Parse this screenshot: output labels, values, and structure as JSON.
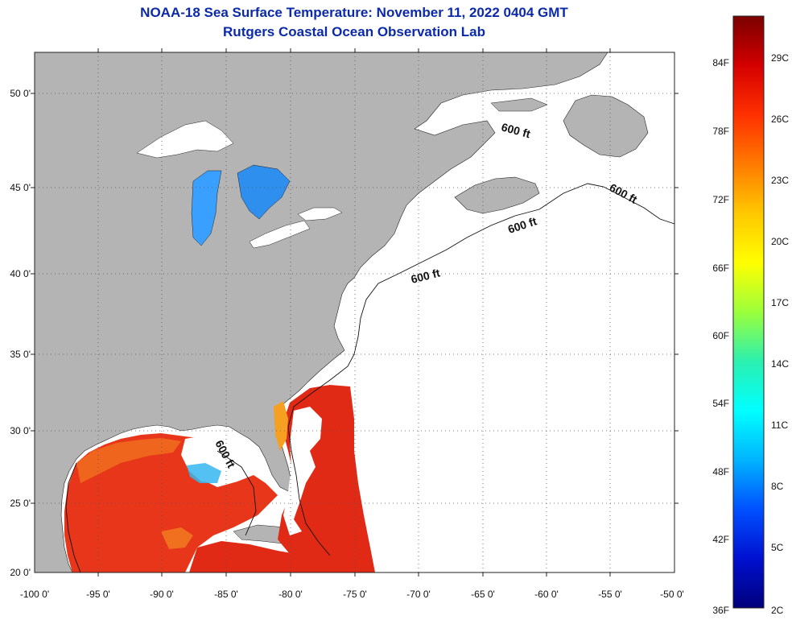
{
  "header": {
    "title": "NOAA-18 Sea Surface Temperature:  November 11, 2022 0404 GMT",
    "subtitle": "Rutgers Coastal Ocean Observation Lab"
  },
  "map": {
    "lon_ticks": [
      "-100 0'",
      "-95 0'",
      "-90 0'",
      "-85 0'",
      "-80 0'",
      "-75 0'",
      "-70 0'",
      "-65 0'",
      "-60 0'",
      "-55 0'",
      "-50 0'"
    ],
    "lat_ticks": [
      "50 0'",
      "45 0'",
      "40 0'",
      "35 0'",
      "30 0'",
      "25 0'",
      "20 0'"
    ],
    "contour_labels": [
      "600 ft",
      "600 ft",
      "600 ft",
      "600 ft",
      "600 ft"
    ],
    "land_color": "#b4b4b4",
    "ocean_nodata_color": "#ffffff"
  },
  "colorbar": {
    "fahrenheit_labels": [
      "84F",
      "78F",
      "72F",
      "66F",
      "60F",
      "54F",
      "48F",
      "42F",
      "36F"
    ],
    "celsius_labels": [
      "29C",
      "26C",
      "23C",
      "20C",
      "17C",
      "14C",
      "11C",
      "8C",
      "5C",
      "2C"
    ],
    "colors": [
      "#7a0000",
      "#d40000",
      "#ff3000",
      "#ff7a00",
      "#ffc800",
      "#ffff00",
      "#9cff3c",
      "#2cf0b0",
      "#00ffff",
      "#00b4ff",
      "#0050ff",
      "#0010d0",
      "#00007a"
    ]
  }
}
